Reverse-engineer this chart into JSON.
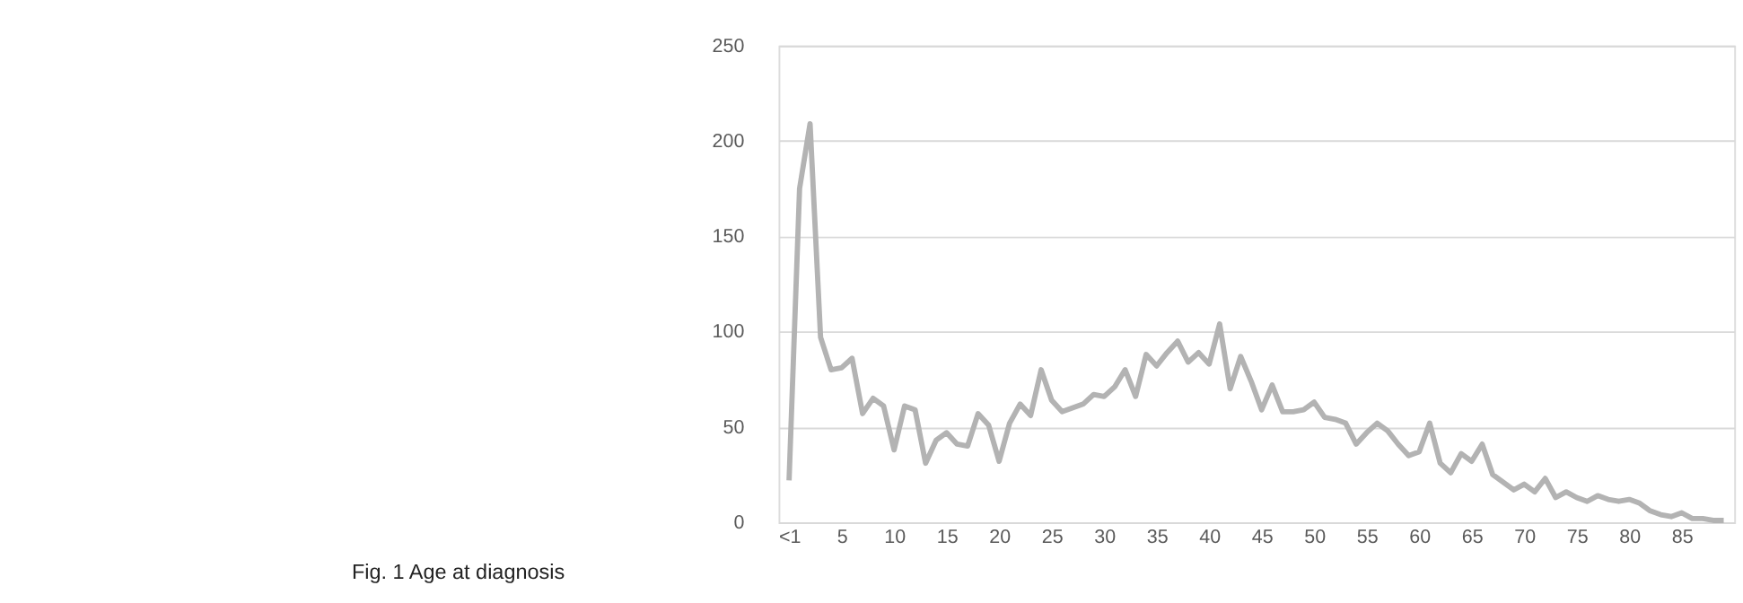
{
  "chart_data": {
    "type": "line",
    "title": "Fig. 1 Age at diagnosis",
    "categories": [
      "<1",
      null,
      null,
      null,
      null,
      "5",
      null,
      null,
      null,
      null,
      "10",
      null,
      null,
      null,
      null,
      "15",
      null,
      null,
      null,
      null,
      "20",
      null,
      null,
      null,
      null,
      "25",
      null,
      null,
      null,
      null,
      "30",
      null,
      null,
      null,
      null,
      "35",
      null,
      null,
      null,
      null,
      "40",
      null,
      null,
      null,
      null,
      "45",
      null,
      null,
      null,
      null,
      "50",
      null,
      null,
      null,
      null,
      "55",
      null,
      null,
      null,
      null,
      "60",
      null,
      null,
      null,
      null,
      "65",
      null,
      null,
      null,
      null,
      "70",
      null,
      null,
      null,
      null,
      "75",
      null,
      null,
      null,
      null,
      "80",
      null,
      null,
      null,
      null,
      "85",
      null,
      null,
      null,
      null
    ],
    "series": [
      {
        "color": "#b3b3b3",
        "values": [
          22,
          175,
          209,
          97,
          80,
          81,
          86,
          57,
          65,
          61,
          38,
          61,
          59,
          31,
          43,
          47,
          41,
          40,
          57,
          51,
          32,
          52,
          62,
          56,
          80,
          64,
          58,
          60,
          62,
          67,
          66,
          71,
          80,
          66,
          88,
          82,
          89,
          95,
          84,
          89,
          83,
          104,
          70,
          87,
          74,
          59,
          72,
          58,
          58,
          59,
          63,
          55,
          54,
          52,
          41,
          47,
          52,
          48,
          41,
          35,
          37,
          52,
          31,
          26,
          36,
          32,
          41,
          25,
          21,
          17,
          20,
          16,
          23,
          13,
          16,
          13,
          11,
          14,
          12,
          11,
          12,
          10,
          6,
          4,
          3,
          5,
          2,
          2,
          1,
          1
        ]
      }
    ],
    "ylim": [
      0,
      250
    ],
    "yticks": [
      0,
      50,
      100,
      150,
      200,
      250
    ],
    "grid": "y",
    "legend": false,
    "marker": "none",
    "line_style": "solid"
  }
}
